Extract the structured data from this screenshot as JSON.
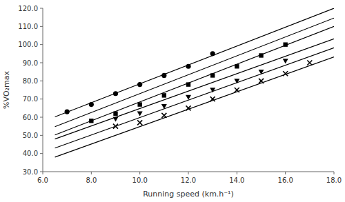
{
  "chart_data": {
    "type": "scatter",
    "xlabel": "Running speed (km.h⁻¹)",
    "ylabel": "%VO₂max",
    "xlim": [
      6.0,
      18.0
    ],
    "ylim": [
      30.0,
      120.0
    ],
    "xticks": [
      {
        "value": 6.0,
        "label": "6.0"
      },
      {
        "value": 8.0,
        "label": "8.0"
      },
      {
        "value": 10.0,
        "label": "10.0"
      },
      {
        "value": 12.0,
        "label": "12.0"
      },
      {
        "value": 14.0,
        "label": "14.0"
      },
      {
        "value": 16.0,
        "label": "16.0"
      },
      {
        "value": 18.0,
        "label": "18.0"
      }
    ],
    "yticks": [
      {
        "value": 30.0,
        "label": "30.0"
      },
      {
        "value": 40.0,
        "label": "40.0"
      },
      {
        "value": 50.0,
        "label": "50.0"
      },
      {
        "value": 60.0,
        "label": "60.0"
      },
      {
        "value": 70.0,
        "label": "70.0"
      },
      {
        "value": 80.0,
        "label": "80.0"
      },
      {
        "value": 90.0,
        "label": "90.0"
      },
      {
        "value": 100.0,
        "label": "100.0"
      },
      {
        "value": 110.0,
        "label": "110.0"
      },
      {
        "value": 120.0,
        "label": "120.0"
      }
    ],
    "grid": false,
    "series": [
      {
        "type": "line",
        "color": "#000000",
        "line_style": "solid",
        "x": [
          6.5,
          18.0
        ],
        "values": [
          60.2,
          120.0
        ]
      },
      {
        "type": "line",
        "color": "#000000",
        "line_style": "solid",
        "x": [
          6.5,
          18.0
        ],
        "values": [
          50.2,
          110.0
        ]
      },
      {
        "type": "line",
        "color": "#000000",
        "line_style": "solid",
        "x": [
          6.5,
          18.0
        ],
        "values": [
          48.0,
          103.2
        ]
      },
      {
        "type": "line",
        "color": "#000000",
        "line_style": "solid",
        "x": [
          6.5,
          18.0
        ],
        "values": [
          43.0,
          98.2
        ]
      },
      {
        "type": "line",
        "color": "#000000",
        "line_style": "solid",
        "x": [
          6.5,
          18.0
        ],
        "values": [
          54.8,
          114.6
        ]
      },
      {
        "type": "line",
        "color": "#000000",
        "line_style": "solid",
        "x": [
          6.5,
          18.0
        ],
        "values": [
          38.0,
          93.2
        ]
      },
      {
        "type": "scatter",
        "color": "#000000",
        "marker": "circle",
        "x": [
          7,
          8,
          9,
          10,
          11,
          12,
          13
        ],
        "values": [
          63,
          67,
          73,
          78,
          83,
          88,
          95
        ]
      },
      {
        "type": "scatter",
        "color": "#000000",
        "marker": "square",
        "x": [
          8,
          9,
          10,
          11,
          12,
          13,
          14,
          15,
          16
        ],
        "values": [
          58,
          62,
          67,
          72,
          78,
          83,
          88,
          94,
          100
        ]
      },
      {
        "type": "scatter",
        "color": "#000000",
        "marker": "triangle-down",
        "x": [
          9,
          10,
          11,
          12,
          13,
          14,
          15,
          16
        ],
        "values": [
          59,
          62,
          66,
          71,
          75,
          80,
          85,
          91
        ]
      },
      {
        "type": "scatter",
        "color": "#000000",
        "marker": "x",
        "x": [
          9,
          10,
          11,
          12,
          13,
          14,
          15,
          16,
          17
        ],
        "values": [
          55,
          57,
          61,
          65,
          70,
          75,
          80,
          84,
          90
        ]
      }
    ]
  }
}
